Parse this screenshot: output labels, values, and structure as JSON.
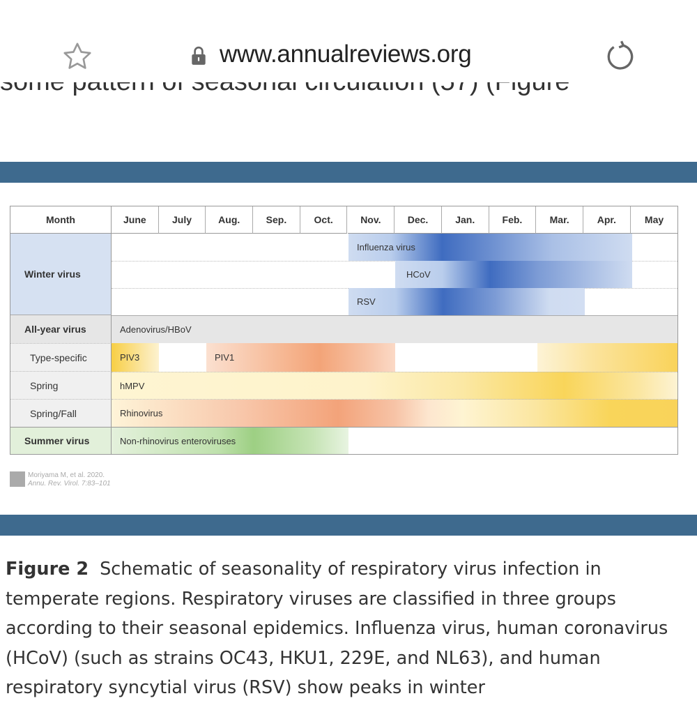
{
  "browser": {
    "url": "www.annualreviews.org",
    "icons": [
      "star-icon",
      "lock-icon",
      "reload-icon"
    ]
  },
  "cut_text": "some pattern of seasonal circulation (57) (Figure",
  "table": {
    "header_label": "Month",
    "months": [
      "June",
      "July",
      "Aug.",
      "Sep.",
      "Oct.",
      "Nov.",
      "Dec.",
      "Jan.",
      "Feb.",
      "Mar.",
      "Apr.",
      "May"
    ],
    "groups": {
      "winter": "Winter virus",
      "all_year": "All-year virus",
      "type_specific": "Type-specific",
      "spring": "Spring",
      "spring_fall": "Spring/Fall",
      "summer": "Summer virus"
    },
    "bars": {
      "influenza": {
        "label": "Influenza virus",
        "start": "Nov.",
        "end": "Apr.",
        "peak": "Jan."
      },
      "hcov": {
        "label": "HCoV",
        "start": "Dec.",
        "end": "Apr.",
        "peak": "Feb."
      },
      "rsv": {
        "label": "RSV",
        "start": "Nov.",
        "end": "Mar.",
        "peak": "Dec./Jan."
      },
      "adeno": {
        "label": "Adenovirus/HBoV",
        "start": "June",
        "end": "May"
      },
      "piv3": {
        "label": "PIV3",
        "start": "Mar.",
        "end": "June"
      },
      "piv1": {
        "label": "PIV1",
        "start": "Aug.",
        "end": "Nov.",
        "peak": "Oct."
      },
      "hmpv": {
        "label": "hMPV",
        "start": "June",
        "end": "May",
        "peak": "Mar."
      },
      "rhino": {
        "label": "Rhinovirus",
        "start": "June",
        "end": "May",
        "peak": "Sep. / Apr."
      },
      "entero": {
        "label": "Non-rhinovirus enteroviruses",
        "start": "June",
        "end": "Oct.",
        "peak": "Aug."
      }
    },
    "colors": {
      "winter": "#4a72c0",
      "all_year": "#e6e6e6",
      "piv": "#f0a070",
      "spring": "#f8d050",
      "summer": "#9ccf80",
      "band": "#3e6a8e"
    }
  },
  "credit": {
    "line1": "Moriyama M, et al. 2020.",
    "line2": "Annu. Rev. Virol. 7:83–101"
  },
  "caption": {
    "label": "Figure 2",
    "text": "Schematic of seasonality of respiratory virus infection in temperate regions. Respiratory viruses are classified in three groups according to their seasonal epidemics. Influenza virus, human coronavirus (HCoV) (such as strains OC43, HKU1, 229E, and NL63), and human respiratory syncytial virus (RSV) show peaks in winter"
  }
}
